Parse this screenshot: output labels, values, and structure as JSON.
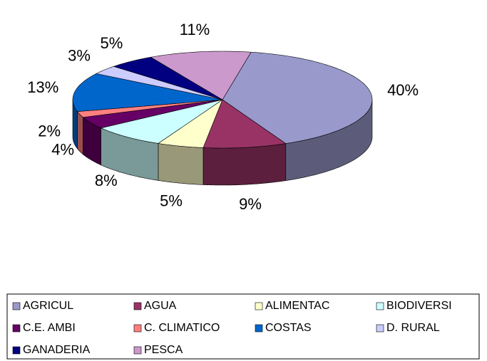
{
  "chart_data": {
    "type": "pie",
    "categories": [
      "AGRICUL",
      "AGUA",
      "ALIMENTAC",
      "BIODIVERSI",
      "C.E. AMBI",
      "C. CLIMATICO",
      "COSTAS",
      "D. RURAL",
      "GANADERIA",
      "PESCA"
    ],
    "values": [
      40,
      9,
      5,
      8,
      4,
      2,
      13,
      3,
      5,
      11
    ],
    "value_labels": [
      "40%",
      "9%",
      "5%",
      "8%",
      "4%",
      "2%",
      "13%",
      "3%",
      "5%",
      "11%"
    ],
    "colors": [
      "#9999cc",
      "#993366",
      "#ffffcc",
      "#ccffff",
      "#660066",
      "#ff8080",
      "#0066cc",
      "#ccccff",
      "#000080",
      "#cc99cc"
    ],
    "legend": "bottom"
  }
}
